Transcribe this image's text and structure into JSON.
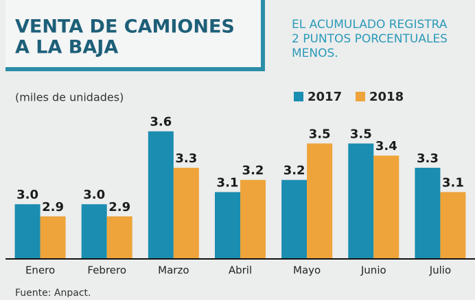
{
  "chart_data": {
    "type": "bar",
    "title": [
      "VENTA DE CAMIONES",
      "A LA BAJA"
    ],
    "subtitle": [
      "EL ACUMULADO REGISTRA",
      "2 PUNTOS PORCENTUALES",
      "MENOS."
    ],
    "y_label": "(miles de unidades)",
    "source": "Fuente: Anpact.",
    "categories": [
      "Enero",
      "Febrero",
      "Marzo",
      "Abril",
      "Mayo",
      "Junio",
      "Julio"
    ],
    "series": [
      {
        "name": "2017",
        "color": "#1b8db0",
        "values": [
          3.0,
          3.0,
          3.6,
          3.1,
          3.2,
          3.5,
          3.3
        ],
        "value_labels": [
          "3.0",
          "3.0",
          "3.6",
          "3.1",
          "3.2",
          "3.5",
          "3.3"
        ]
      },
      {
        "name": "2018",
        "color": "#eea43a",
        "values": [
          2.9,
          2.9,
          3.3,
          3.2,
          3.5,
          3.4,
          3.1
        ],
        "value_labels": [
          "2.9",
          "2.9",
          "3.3",
          "3.2",
          "3.5",
          "3.4",
          "3.1"
        ]
      }
    ],
    "ylim": [
      2.55,
      3.7
    ]
  }
}
